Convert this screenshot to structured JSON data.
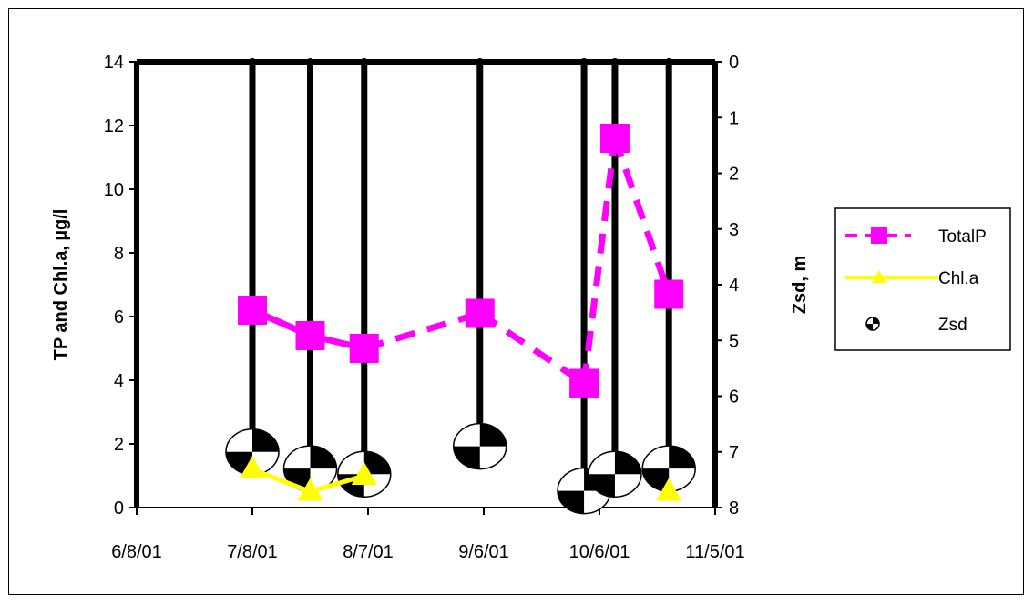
{
  "chart_data": {
    "type": "line",
    "title": "",
    "xlabel": "",
    "ylabel": "TP and Chl.a, µg/l",
    "y2label": "Zsd, m",
    "x_ticks": [
      "6/8/01",
      "7/8/01",
      "8/7/01",
      "9/6/01",
      "10/6/01",
      "11/5/01"
    ],
    "xlim": [
      "6/8/01",
      "11/5/01"
    ],
    "ylim": [
      0,
      14
    ],
    "y_ticks": [
      "0",
      "2",
      "4",
      "6",
      "8",
      "10",
      "12",
      "14"
    ],
    "y2lim": [
      8,
      0
    ],
    "y2_reversed": true,
    "y2_ticks": [
      "0",
      "1",
      "2",
      "3",
      "4",
      "5",
      "6",
      "7",
      "8"
    ],
    "grid": false,
    "legend_position": "right",
    "series": [
      {
        "name": "TotalP",
        "axis": "left",
        "color": "#ff00ff",
        "marker": "square",
        "line_style": "dashed",
        "points": [
          {
            "date": "2001-07-08",
            "value": 6.2
          },
          {
            "date": "2001-07-23",
            "value": 5.4
          },
          {
            "date": "2001-08-06",
            "value": 5.0
          },
          {
            "date": "2001-09-05",
            "value": 6.1
          },
          {
            "date": "2001-10-02",
            "value": 3.9
          },
          {
            "date": "2001-10-10",
            "value": 11.6
          },
          {
            "date": "2001-10-24",
            "value": 6.7
          }
        ]
      },
      {
        "name": "Chl.a",
        "axis": "left",
        "color": "#ffff00",
        "marker": "triangle",
        "line_style": "solid",
        "points": [
          {
            "date": "2001-07-08",
            "value": 1.2
          },
          {
            "date": "2001-07-23",
            "value": 0.5
          },
          {
            "date": "2001-08-06",
            "value": 1.0
          },
          {
            "date": "2001-10-24",
            "value": 0.5
          }
        ]
      },
      {
        "name": "Zsd",
        "axis": "right",
        "color": "#000000",
        "marker": "secchi-disk",
        "line_style": "drop-line",
        "points": [
          {
            "date": "2001-07-08",
            "value": 7.0
          },
          {
            "date": "2001-07-23",
            "value": 7.3
          },
          {
            "date": "2001-08-06",
            "value": 7.4
          },
          {
            "date": "2001-09-05",
            "value": 6.9
          },
          {
            "date": "2001-10-02",
            "value": 7.7
          },
          {
            "date": "2001-10-10",
            "value": 7.4
          },
          {
            "date": "2001-10-24",
            "value": 7.3
          }
        ]
      }
    ]
  }
}
